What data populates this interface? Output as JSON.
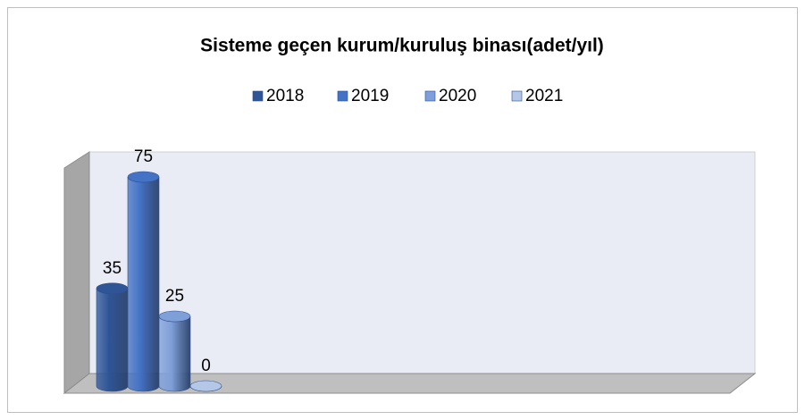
{
  "chart_data": {
    "type": "bar3d",
    "title": "Sisteme geçen kurum/kuruluş binası(adet/yıl)",
    "categories": [
      null
    ],
    "series": [
      {
        "name": "2018",
        "color": "#2f5597",
        "values": [
          35
        ]
      },
      {
        "name": "2019",
        "color": "#4472c4",
        "values": [
          75
        ]
      },
      {
        "name": "2020",
        "color": "#7f9fd9",
        "values": [
          25
        ]
      },
      {
        "name": "2021",
        "color": "#b4c7e7",
        "values": [
          0
        ]
      }
    ],
    "legend": "top"
  }
}
